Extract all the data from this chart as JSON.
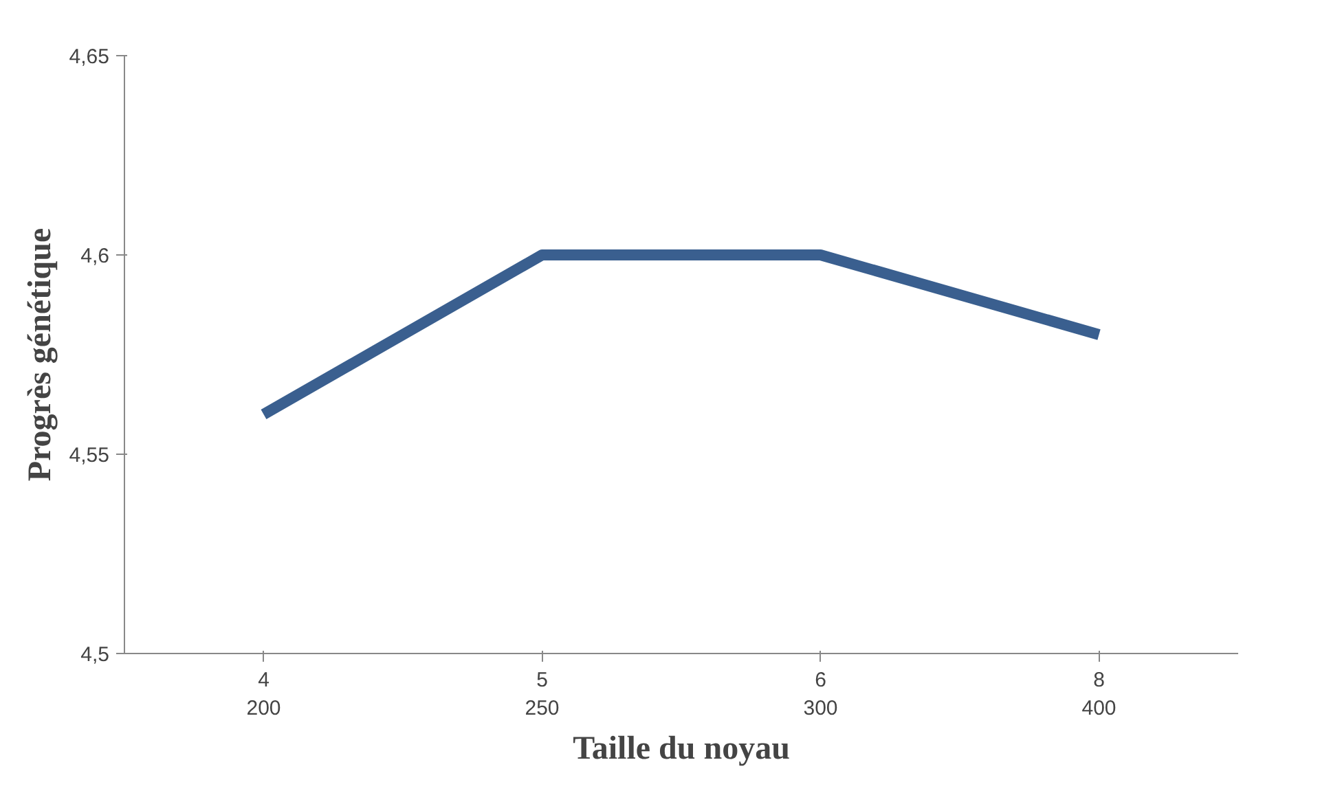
{
  "chart_data": {
    "type": "line",
    "xlabel": "Taille du noyau",
    "ylabel": "Progrès génétique",
    "categories": [
      "4\n200",
      "5\n250",
      "6\n300",
      "8\n400"
    ],
    "series": [
      {
        "color": "#3a5f8f",
        "values": [
          4.56,
          4.6,
          4.6,
          4.58
        ]
      }
    ],
    "ylim": [
      4.5,
      4.65
    ],
    "yticks": [
      {
        "value": 4.5,
        "label": "4,5"
      },
      {
        "value": 4.55,
        "label": "4,55"
      },
      {
        "value": 4.6,
        "label": "4,6"
      },
      {
        "value": 4.65,
        "label": "4,65"
      }
    ],
    "grid": false,
    "marker": "none",
    "line_style": "solid"
  }
}
